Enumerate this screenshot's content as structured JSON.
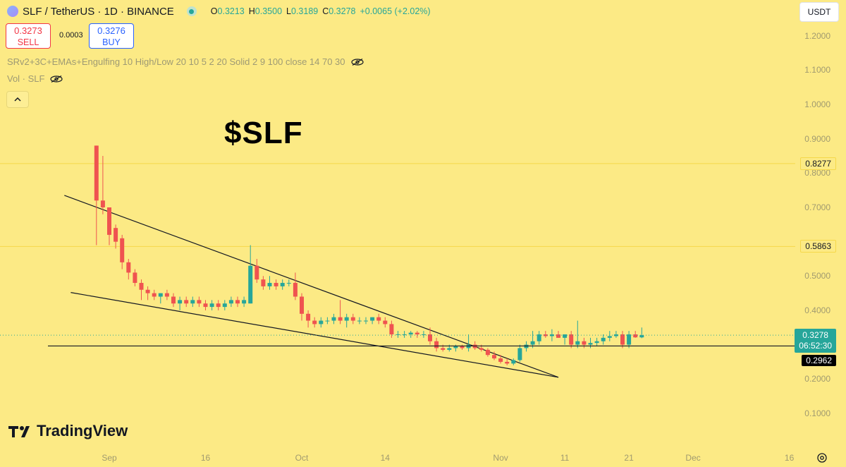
{
  "header": {
    "symbol": "SLF / TetherUS · 1D · BINANCE",
    "ohlc": {
      "o_label": "O",
      "o": "0.3213",
      "h_label": "H",
      "h": "0.3500",
      "l_label": "L",
      "l": "0.3189",
      "c_label": "C",
      "c": "0.3278",
      "change": "+0.0065 (+2.02%)"
    }
  },
  "trade": {
    "sell_price": "0.3273",
    "sell_label": "SELL",
    "spread": "0.0003",
    "buy_price": "0.3276",
    "buy_label": "BUY"
  },
  "indicators": {
    "line1": "SRv2+3C+EMAs+Engulfing 10 High/Low 20 10 5 2 20 Solid 2 9 100 close 14 70 30",
    "line2": "Vol · SLF"
  },
  "currency": "USDT",
  "annotation": "$SLF",
  "brand": "TradingView",
  "colors": {
    "up": "#26a69a",
    "down": "#ef5350",
    "background": "#fcea85",
    "level": "#f5d84a"
  },
  "yaxis": {
    "ticks": [
      {
        "label": "1.2000",
        "v": 1.2
      },
      {
        "label": "1.1000",
        "v": 1.1
      },
      {
        "label": "1.0000",
        "v": 1.0
      },
      {
        "label": "0.9000",
        "v": 0.9
      },
      {
        "label": "0.8000",
        "v": 0.8
      },
      {
        "label": "0.7000",
        "v": 0.7
      },
      {
        "label": "0.5000",
        "v": 0.5
      },
      {
        "label": "0.4000",
        "v": 0.4
      },
      {
        "label": "0.2000",
        "v": 0.2
      },
      {
        "label": "0.1000",
        "v": 0.1
      }
    ]
  },
  "xaxis": {
    "ticks": [
      {
        "label": "Sep",
        "day": 0
      },
      {
        "label": "16",
        "day": 15
      },
      {
        "label": "Oct",
        "day": 30
      },
      {
        "label": "14",
        "day": 43
      },
      {
        "label": "Nov",
        "day": 61
      },
      {
        "label": "11",
        "day": 71
      },
      {
        "label": "21",
        "day": 81
      },
      {
        "label": "Dec",
        "day": 91
      },
      {
        "label": "16",
        "day": 106
      }
    ]
  },
  "tags": {
    "level_high": "0.8277",
    "level_mid": "0.5863",
    "last_price": "0.3278",
    "countdown": "06:52:30",
    "support": "0.2962"
  },
  "chart_data": {
    "type": "candlestick",
    "x_unit": "day (Sep 1 = 0)",
    "price_range": [
      0.05,
      1.25
    ],
    "horizontal_levels": [
      0.8277,
      0.5863,
      0.2962
    ],
    "trendlines": [
      {
        "from": {
          "day": -7,
          "price": 0.735
        },
        "to": {
          "day": 70,
          "price": 0.205
        }
      },
      {
        "from": {
          "day": -6,
          "price": 0.452
        },
        "to": {
          "day": 70,
          "price": 0.205
        }
      }
    ],
    "candles": [
      {
        "day": -2,
        "o": 0.88,
        "h": 0.88,
        "l": 0.59,
        "c": 0.72
      },
      {
        "day": -1,
        "o": 0.72,
        "h": 0.85,
        "l": 0.68,
        "c": 0.7
      },
      {
        "day": 0,
        "o": 0.7,
        "h": 0.7,
        "l": 0.59,
        "c": 0.62
      },
      {
        "day": 1,
        "o": 0.64,
        "h": 0.65,
        "l": 0.58,
        "c": 0.6
      },
      {
        "day": 2,
        "o": 0.61,
        "h": 0.62,
        "l": 0.52,
        "c": 0.54
      },
      {
        "day": 3,
        "o": 0.54,
        "h": 0.55,
        "l": 0.49,
        "c": 0.51
      },
      {
        "day": 4,
        "o": 0.51,
        "h": 0.52,
        "l": 0.47,
        "c": 0.48
      },
      {
        "day": 5,
        "o": 0.48,
        "h": 0.49,
        "l": 0.43,
        "c": 0.46
      },
      {
        "day": 6,
        "o": 0.46,
        "h": 0.47,
        "l": 0.43,
        "c": 0.45
      },
      {
        "day": 7,
        "o": 0.45,
        "h": 0.46,
        "l": 0.43,
        "c": 0.44
      },
      {
        "day": 8,
        "o": 0.44,
        "h": 0.45,
        "l": 0.42,
        "c": 0.45
      },
      {
        "day": 9,
        "o": 0.45,
        "h": 0.46,
        "l": 0.43,
        "c": 0.44
      },
      {
        "day": 10,
        "o": 0.44,
        "h": 0.45,
        "l": 0.41,
        "c": 0.42
      },
      {
        "day": 11,
        "o": 0.42,
        "h": 0.44,
        "l": 0.4,
        "c": 0.43
      },
      {
        "day": 12,
        "o": 0.43,
        "h": 0.44,
        "l": 0.41,
        "c": 0.42
      },
      {
        "day": 13,
        "o": 0.42,
        "h": 0.44,
        "l": 0.41,
        "c": 0.43
      },
      {
        "day": 14,
        "o": 0.43,
        "h": 0.44,
        "l": 0.41,
        "c": 0.42
      },
      {
        "day": 15,
        "o": 0.42,
        "h": 0.43,
        "l": 0.4,
        "c": 0.41
      },
      {
        "day": 16,
        "o": 0.41,
        "h": 0.43,
        "l": 0.4,
        "c": 0.42
      },
      {
        "day": 17,
        "o": 0.42,
        "h": 0.43,
        "l": 0.4,
        "c": 0.41
      },
      {
        "day": 18,
        "o": 0.41,
        "h": 0.43,
        "l": 0.4,
        "c": 0.42
      },
      {
        "day": 19,
        "o": 0.42,
        "h": 0.44,
        "l": 0.41,
        "c": 0.43
      },
      {
        "day": 20,
        "o": 0.43,
        "h": 0.44,
        "l": 0.41,
        "c": 0.42
      },
      {
        "day": 21,
        "o": 0.42,
        "h": 0.44,
        "l": 0.41,
        "c": 0.43
      },
      {
        "day": 22,
        "o": 0.42,
        "h": 0.59,
        "l": 0.42,
        "c": 0.53
      },
      {
        "day": 23,
        "o": 0.53,
        "h": 0.55,
        "l": 0.48,
        "c": 0.49
      },
      {
        "day": 24,
        "o": 0.49,
        "h": 0.5,
        "l": 0.46,
        "c": 0.47
      },
      {
        "day": 25,
        "o": 0.47,
        "h": 0.5,
        "l": 0.46,
        "c": 0.48
      },
      {
        "day": 26,
        "o": 0.48,
        "h": 0.49,
        "l": 0.46,
        "c": 0.47
      },
      {
        "day": 27,
        "o": 0.47,
        "h": 0.49,
        "l": 0.46,
        "c": 0.48
      },
      {
        "day": 28,
        "o": 0.48,
        "h": 0.49,
        "l": 0.47,
        "c": 0.48
      },
      {
        "day": 29,
        "o": 0.48,
        "h": 0.51,
        "l": 0.43,
        "c": 0.44
      },
      {
        "day": 30,
        "o": 0.44,
        "h": 0.45,
        "l": 0.37,
        "c": 0.39
      },
      {
        "day": 31,
        "o": 0.39,
        "h": 0.4,
        "l": 0.35,
        "c": 0.37
      },
      {
        "day": 32,
        "o": 0.37,
        "h": 0.38,
        "l": 0.35,
        "c": 0.36
      },
      {
        "day": 33,
        "o": 0.36,
        "h": 0.38,
        "l": 0.35,
        "c": 0.37
      },
      {
        "day": 34,
        "o": 0.37,
        "h": 0.38,
        "l": 0.36,
        "c": 0.37
      },
      {
        "day": 35,
        "o": 0.37,
        "h": 0.39,
        "l": 0.36,
        "c": 0.38
      },
      {
        "day": 36,
        "o": 0.38,
        "h": 0.43,
        "l": 0.36,
        "c": 0.37
      },
      {
        "day": 37,
        "o": 0.37,
        "h": 0.39,
        "l": 0.35,
        "c": 0.38
      },
      {
        "day": 38,
        "o": 0.38,
        "h": 0.39,
        "l": 0.36,
        "c": 0.37
      },
      {
        "day": 39,
        "o": 0.37,
        "h": 0.38,
        "l": 0.36,
        "c": 0.37
      },
      {
        "day": 40,
        "o": 0.37,
        "h": 0.38,
        "l": 0.36,
        "c": 0.37
      },
      {
        "day": 41,
        "o": 0.37,
        "h": 0.38,
        "l": 0.36,
        "c": 0.38
      },
      {
        "day": 42,
        "o": 0.38,
        "h": 0.39,
        "l": 0.36,
        "c": 0.37
      },
      {
        "day": 43,
        "o": 0.37,
        "h": 0.38,
        "l": 0.35,
        "c": 0.36
      },
      {
        "day": 44,
        "o": 0.36,
        "h": 0.37,
        "l": 0.32,
        "c": 0.33
      },
      {
        "day": 45,
        "o": 0.33,
        "h": 0.34,
        "l": 0.32,
        "c": 0.33
      },
      {
        "day": 46,
        "o": 0.33,
        "h": 0.34,
        "l": 0.32,
        "c": 0.33
      },
      {
        "day": 47,
        "o": 0.33,
        "h": 0.34,
        "l": 0.32,
        "c": 0.335
      },
      {
        "day": 48,
        "o": 0.335,
        "h": 0.34,
        "l": 0.32,
        "c": 0.33
      },
      {
        "day": 49,
        "o": 0.33,
        "h": 0.34,
        "l": 0.32,
        "c": 0.33
      },
      {
        "day": 50,
        "o": 0.33,
        "h": 0.35,
        "l": 0.3,
        "c": 0.31
      },
      {
        "day": 51,
        "o": 0.31,
        "h": 0.32,
        "l": 0.28,
        "c": 0.29
      },
      {
        "day": 52,
        "o": 0.29,
        "h": 0.3,
        "l": 0.28,
        "c": 0.285
      },
      {
        "day": 53,
        "o": 0.285,
        "h": 0.3,
        "l": 0.28,
        "c": 0.29
      },
      {
        "day": 54,
        "o": 0.29,
        "h": 0.3,
        "l": 0.28,
        "c": 0.295
      },
      {
        "day": 55,
        "o": 0.295,
        "h": 0.3,
        "l": 0.285,
        "c": 0.29
      },
      {
        "day": 56,
        "o": 0.29,
        "h": 0.33,
        "l": 0.28,
        "c": 0.3
      },
      {
        "day": 57,
        "o": 0.3,
        "h": 0.31,
        "l": 0.285,
        "c": 0.29
      },
      {
        "day": 58,
        "o": 0.29,
        "h": 0.3,
        "l": 0.28,
        "c": 0.285
      },
      {
        "day": 59,
        "o": 0.285,
        "h": 0.29,
        "l": 0.265,
        "c": 0.27
      },
      {
        "day": 60,
        "o": 0.27,
        "h": 0.28,
        "l": 0.255,
        "c": 0.26
      },
      {
        "day": 61,
        "o": 0.26,
        "h": 0.27,
        "l": 0.245,
        "c": 0.25
      },
      {
        "day": 62,
        "o": 0.25,
        "h": 0.26,
        "l": 0.24,
        "c": 0.245
      },
      {
        "day": 63,
        "o": 0.245,
        "h": 0.26,
        "l": 0.24,
        "c": 0.255
      },
      {
        "day": 64,
        "o": 0.255,
        "h": 0.3,
        "l": 0.25,
        "c": 0.29
      },
      {
        "day": 65,
        "o": 0.29,
        "h": 0.31,
        "l": 0.28,
        "c": 0.3
      },
      {
        "day": 66,
        "o": 0.3,
        "h": 0.34,
        "l": 0.29,
        "c": 0.31
      },
      {
        "day": 67,
        "o": 0.31,
        "h": 0.34,
        "l": 0.3,
        "c": 0.33
      },
      {
        "day": 68,
        "o": 0.33,
        "h": 0.34,
        "l": 0.32,
        "c": 0.325
      },
      {
        "day": 69,
        "o": 0.325,
        "h": 0.345,
        "l": 0.31,
        "c": 0.33
      },
      {
        "day": 70,
        "o": 0.33,
        "h": 0.34,
        "l": 0.32,
        "c": 0.32
      },
      {
        "day": 71,
        "o": 0.32,
        "h": 0.33,
        "l": 0.3,
        "c": 0.33
      },
      {
        "day": 72,
        "o": 0.33,
        "h": 0.34,
        "l": 0.29,
        "c": 0.3
      },
      {
        "day": 73,
        "o": 0.3,
        "h": 0.37,
        "l": 0.29,
        "c": 0.31
      },
      {
        "day": 74,
        "o": 0.31,
        "h": 0.32,
        "l": 0.29,
        "c": 0.3
      },
      {
        "day": 75,
        "o": 0.3,
        "h": 0.32,
        "l": 0.29,
        "c": 0.305
      },
      {
        "day": 76,
        "o": 0.305,
        "h": 0.32,
        "l": 0.295,
        "c": 0.31
      },
      {
        "day": 77,
        "o": 0.31,
        "h": 0.33,
        "l": 0.3,
        "c": 0.32
      },
      {
        "day": 78,
        "o": 0.32,
        "h": 0.34,
        "l": 0.31,
        "c": 0.325
      },
      {
        "day": 79,
        "o": 0.325,
        "h": 0.34,
        "l": 0.32,
        "c": 0.33
      },
      {
        "day": 80,
        "o": 0.33,
        "h": 0.34,
        "l": 0.29,
        "c": 0.3
      },
      {
        "day": 81,
        "o": 0.3,
        "h": 0.34,
        "l": 0.29,
        "c": 0.33
      },
      {
        "day": 82,
        "o": 0.33,
        "h": 0.34,
        "l": 0.32,
        "c": 0.3213
      },
      {
        "day": 83,
        "o": 0.3213,
        "h": 0.35,
        "l": 0.3189,
        "c": 0.3278
      }
    ]
  }
}
